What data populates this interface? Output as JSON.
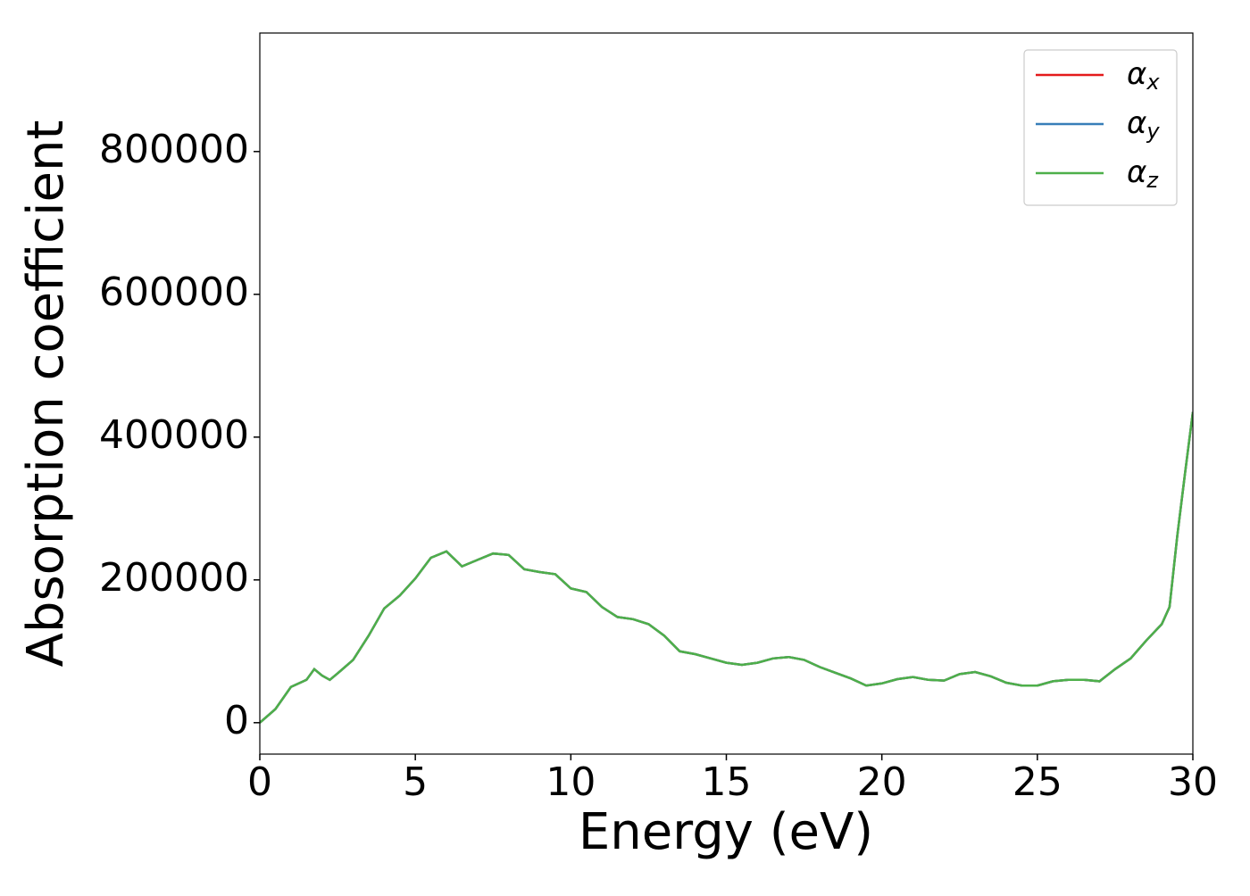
{
  "chart_data": {
    "type": "line",
    "x_label": "Energy (eV)",
    "y_label": "Absorption coefficient",
    "x": [
      0,
      0.5,
      1,
      1.5,
      1.75,
      2,
      2.25,
      2.5,
      3,
      3.5,
      4,
      4.5,
      5,
      5.5,
      6,
      6.5,
      7,
      7.5,
      8,
      8.5,
      9,
      9.5,
      10,
      10.5,
      11,
      11.5,
      12,
      12.5,
      13,
      13.5,
      14,
      14.5,
      15,
      15.5,
      16,
      16.5,
      17,
      17.5,
      18,
      18.5,
      19,
      19.5,
      20,
      20.5,
      21,
      21.5,
      22,
      22.5,
      23,
      23.5,
      24,
      24.5,
      25,
      25.5,
      26,
      26.5,
      27,
      27.5,
      28,
      28.5,
      29,
      29.25,
      29.5,
      29.75,
      30
    ],
    "series": [
      {
        "name": "αx",
        "color": "#e41a1c",
        "values": [
          0,
          19000,
          50000,
          60000,
          75000,
          66000,
          60000,
          69000,
          88000,
          122000,
          160000,
          178000,
          202000,
          231000,
          240000,
          219000,
          228000,
          237000,
          235000,
          215000,
          211000,
          208000,
          188000,
          183000,
          162000,
          148000,
          145000,
          138000,
          122000,
          100000,
          96000,
          90000,
          84000,
          81000,
          84000,
          90000,
          92000,
          88000,
          78000,
          70000,
          62000,
          52000,
          55000,
          61000,
          64000,
          60000,
          59000,
          68000,
          71000,
          65000,
          56000,
          52000,
          52000,
          58000,
          60000,
          60000,
          58000,
          75000,
          90000,
          115000,
          138000,
          162000,
          262000,
          350000,
          435000
        ]
      },
      {
        "name": "αy",
        "color": "#377eb8",
        "values": [
          0,
          19000,
          50000,
          60000,
          75000,
          66000,
          60000,
          69000,
          88000,
          122000,
          160000,
          178000,
          202000,
          231000,
          240000,
          219000,
          228000,
          237000,
          235000,
          215000,
          211000,
          208000,
          188000,
          183000,
          162000,
          148000,
          145000,
          138000,
          122000,
          100000,
          96000,
          90000,
          84000,
          81000,
          84000,
          90000,
          92000,
          88000,
          78000,
          70000,
          62000,
          52000,
          55000,
          61000,
          64000,
          60000,
          59000,
          68000,
          71000,
          65000,
          56000,
          52000,
          52000,
          58000,
          60000,
          60000,
          58000,
          75000,
          90000,
          115000,
          138000,
          162000,
          262000,
          350000,
          435000
        ]
      },
      {
        "name": "αz",
        "color": "#4daf4a",
        "values": [
          0,
          19000,
          50000,
          60000,
          75000,
          66000,
          60000,
          69000,
          88000,
          122000,
          160000,
          178000,
          202000,
          231000,
          240000,
          219000,
          228000,
          237000,
          235000,
          215000,
          211000,
          208000,
          188000,
          183000,
          162000,
          148000,
          145000,
          138000,
          122000,
          100000,
          96000,
          90000,
          84000,
          81000,
          84000,
          90000,
          92000,
          88000,
          78000,
          70000,
          62000,
          52000,
          55000,
          61000,
          64000,
          60000,
          59000,
          68000,
          71000,
          65000,
          56000,
          52000,
          52000,
          58000,
          60000,
          60000,
          58000,
          75000,
          90000,
          115000,
          138000,
          162000,
          262000,
          350000,
          435000
        ]
      }
    ],
    "xlim": [
      0,
      30
    ],
    "xticks": [
      0,
      5,
      10,
      15,
      20,
      25,
      30
    ],
    "ylim": [
      -44000,
      966000
    ],
    "yticks": [
      0,
      200000,
      400000,
      600000,
      800000
    ],
    "legend": "upper right"
  }
}
